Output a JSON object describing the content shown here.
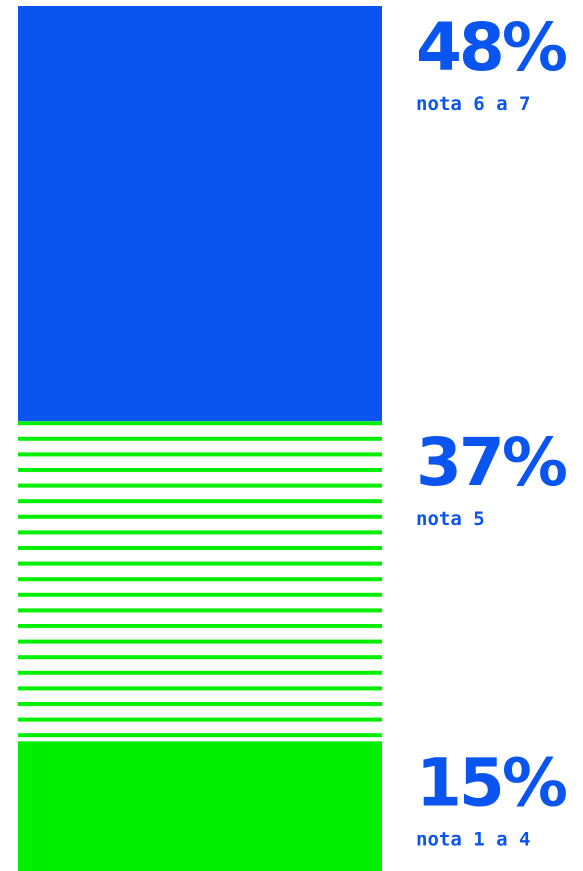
{
  "colors": {
    "blue": "#0a55f0",
    "green": "#00ee00",
    "background": "#ffffff"
  },
  "chart_data": {
    "type": "bar",
    "layout": "stacked-vertical-100",
    "ylim": [
      0,
      100
    ],
    "series": [
      {
        "label": "48%",
        "category": "nota 6 a 7",
        "value": 48,
        "fill": "solid",
        "color": "#0a55f0"
      },
      {
        "label": "37%",
        "category": "nota 5",
        "value": 37,
        "fill": "horizontal-stripes",
        "color": "#00ee00"
      },
      {
        "label": "15%",
        "category": "nota 1 a 4",
        "value": 15,
        "fill": "solid",
        "color": "#00ee00"
      }
    ]
  }
}
